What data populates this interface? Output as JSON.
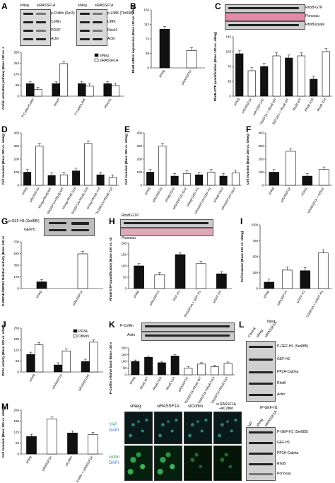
{
  "panels": {
    "A": {
      "label": "A",
      "blot_header_left": [
        "siNeg",
        "siRASSF1A"
      ],
      "blot_header_right": [
        "siNeg",
        "siRASSF1A"
      ],
      "blot_rows_left": [
        "p-Cofilin (Ser3)",
        "Cofilin",
        "PDXP",
        "Actin"
      ],
      "blot_rows_right": [
        "p-LIMK (Thr508)",
        "LIMK",
        "Rock1",
        "Actin"
      ],
      "legend": [
        "siNeg",
        "siRASSF1A"
      ],
      "ylabel": "Cofilin activation pathway (Base 100 vs. siNeg)",
      "categories": [
        "P-Cofilin/ Cofilin",
        "PDXP",
        "P-LIMK/ LIMK",
        "ROCK1"
      ],
      "marks": [
        "**",
        "*",
        "*",
        "*"
      ]
    },
    "B": {
      "label": "B",
      "ylabel": "RhoB mRNA expression (Base 100 vs. siNeg)",
      "categories": [
        "siNeg",
        "siRASSF1A"
      ],
      "mark": "***"
    },
    "C": {
      "label": "C",
      "rows": [
        "RhoB-GTP",
        "Ponceau",
        "RhoB-lysate"
      ],
      "ylabel": "RhoB-GTP quantification (Base 100 vs. siNeg)",
      "categories": [
        "siNeg",
        "siRASSF1A",
        "siRASSF1AC",
        "siRASSF1A + RhoB WT",
        "siRASSF1AC + RhoB WT",
        "RhoB WT",
        "RhoB N19",
        "RhoB V14"
      ]
    },
    "D": {
      "label": "D",
      "ylabel": "Cell invasion (Base 100 vs. siNeg)",
      "categories": [
        "siNeg",
        "siRASSF1A",
        "siNeg+ RhoB WT",
        "siRASSF1A+ RhoB WT",
        "siNeg+ RhoB N19",
        "siRASSF1A+ RhoB N19",
        "siNeg+ RhoB V14",
        "siRASSF1A+ RhoB V14"
      ]
    },
    "E": {
      "label": "E",
      "ylabel": "Cell invasion (Base 100 vs. siNeg)",
      "categories": [
        "siNeg",
        "siRASSF1A",
        "siNeg+ Ect2",
        "siRASSF1A+ Ect2",
        "siNeg+ GEF-H1",
        "siRASSF1A+ GEF-H1",
        "siNeg+ Vav2",
        "siRASSF1A+ Vav2"
      ]
    },
    "F": {
      "label": "F",
      "ylabel": "Cell invasion (Base 100 vs. siNeg)",
      "categories": [
        "siNeg",
        "siRASSF1A",
        "mDia1",
        "siRASSF1A + mDia1"
      ]
    },
    "G": {
      "label": "G",
      "rows": [
        "p-GEF-H1 (Ser885)",
        "GEFH1"
      ],
      "ylabel": "P-GEFH1/GEFH1 Relative activity (Base 100 vs. siNeg)",
      "categories": [
        "siNeg",
        "siRASSF1A"
      ],
      "mark": "*"
    },
    "H": {
      "label": "H",
      "rows": [
        "RhoB-GTP",
        "Ponceau"
      ],
      "ylabel": "RhoB-GTP quantification (Base 100 vs. siNeg)",
      "categories": [
        "siNeg",
        "siRASSF1A",
        "GEF-H1",
        "siRASSF1A + GEF-H1",
        "siGEF-H1"
      ]
    },
    "I": {
      "label": "I",
      "ylabel": "Cell invasion (Base 100 vs. siNeg)",
      "categories": [
        "siNeg",
        "siRASSF1A",
        "siGEF-H1",
        "siRASSF1A + siGEF-H1"
      ]
    },
    "J": {
      "label": "J",
      "legend": [
        "PP2A",
        "Others"
      ],
      "ylabel": "PP2A activity (Base 100 vs. siNeg)",
      "categories": [
        "siNeg",
        "siRASSF1A",
        "siRASSF1AC"
      ]
    },
    "K": {
      "label": "K",
      "rows": [
        "P-Cofilin",
        "Actin"
      ],
      "ylabel": "P-Cofilin relative band (Base 100 vs. siNeg)",
      "categories": [
        "siNeg",
        "RhoB WT",
        "RhoB N19",
        "RhoB V14",
        "siRASSF1A",
        "siRASSF1A+ RhoB WT",
        "siRASSF1A+ RhoB N19",
        "siRASSF1A+ RhoB V14"
      ]
    },
    "L": {
      "label": "L",
      "input_title": "Input",
      "ip_title": "IP-GEF-H1",
      "lanes_input": [
        "Control",
        "siNeg",
        "siRASSF1A"
      ],
      "lanes_ip": [
        "IgG",
        "siNeg",
        "siRASSF1A"
      ],
      "rows_input": [
        "P-GEF-H1 (Ser885)",
        "GEF-H1",
        "PP2A-Calpha",
        "RhoB",
        "Actin"
      ],
      "rows_ip": [
        "P-GEF-H1 (Ser885)",
        "GEF-H1",
        "PP2A-Calpha",
        "RhoB",
        "Ponceau"
      ]
    },
    "M": {
      "label": "M",
      "ylabel": "Cell invasion (Base 100 vs. siNeg)",
      "categories": [
        "siNeg",
        "siRASSF1A",
        "siCofilin",
        "siCofilin + siRASSF1A"
      ],
      "micro_cols": [
        "siNeg",
        "siRASSF1A",
        "siCofilin",
        "si RASSF1A +siCofilin"
      ],
      "stain_top": [
        "YAP",
        "DAPI"
      ],
      "stain_bottom": [
        "cofilin",
        "DAPI"
      ]
    }
  },
  "chart_data": [
    {
      "panel": "A",
      "type": "bar",
      "categories": [
        "P-Cofilin/Cofilin",
        "PDXP",
        "P-LIMK/LIMK",
        "ROCK1"
      ],
      "series": [
        {
          "name": "siNeg",
          "values": [
            100,
            100,
            100,
            100
          ]
        },
        {
          "name": "siRASSF1A",
          "values": [
            55,
            260,
            80,
            85
          ]
        }
      ],
      "ylim": [
        0,
        350
      ]
    },
    {
      "panel": "B",
      "type": "bar",
      "categories": [
        "siNeg",
        "siRASSF1A"
      ],
      "values": [
        100,
        45
      ],
      "ylim": [
        0,
        150
      ]
    },
    {
      "panel": "C",
      "type": "bar",
      "categories": [
        "siNeg",
        "siRASSF1A",
        "siRASSF1AC",
        "siRASSF1A + RhoB WT",
        "siRASSF1AC + RhoB WT",
        "RhoB WT",
        "RhoB N19",
        "RhoB V14"
      ],
      "values": [
        100,
        60,
        70,
        95,
        90,
        95,
        40,
        105
      ],
      "ylim": [
        0,
        140
      ]
    },
    {
      "panel": "D",
      "type": "bar",
      "categories": [
        "siNeg",
        "siRASSF1A",
        "siNeg+RhoB WT",
        "siRASSF1A+RhoB WT",
        "siNeg+RhoB N19",
        "siRASSF1A+RhoB N19",
        "siNeg+RhoB V14",
        "siRASSF1A+RhoB V14"
      ],
      "values": [
        100,
        300,
        75,
        80,
        110,
        320,
        80,
        60
      ],
      "ylim": [
        0,
        400
      ]
    },
    {
      "panel": "E",
      "type": "bar",
      "categories": [
        "siNeg",
        "siRASSF1A",
        "siNeg+Ect2",
        "siRASSF1A+Ect2",
        "siNeg+GEF-H1",
        "siRASSF1A+GEF-H1",
        "siNeg+Vav2",
        "siRASSF1A+Vav2"
      ],
      "values": [
        100,
        300,
        70,
        90,
        80,
        100,
        70,
        95
      ],
      "ylim": [
        0,
        400
      ]
    },
    {
      "panel": "F",
      "type": "bar",
      "categories": [
        "siNeg",
        "siRASSF1A",
        "mDia1",
        "siRASSF1A + mDia1"
      ],
      "values": [
        100,
        260,
        70,
        120
      ],
      "ylim": [
        0,
        400
      ]
    },
    {
      "panel": "G",
      "type": "bar",
      "categories": [
        "siNeg",
        "siRASSF1A"
      ],
      "values": [
        100,
        520
      ],
      "ylim": [
        0,
        700
      ]
    },
    {
      "panel": "H",
      "type": "bar",
      "categories": [
        "siNeg",
        "siRASSF1A",
        "GEF-H1",
        "siRASSF1A + GEF-H1",
        "siGEF-H1"
      ],
      "values": [
        100,
        60,
        150,
        110,
        65
      ],
      "ylim": [
        0,
        200
      ]
    },
    {
      "panel": "I",
      "type": "bar",
      "categories": [
        "siNeg",
        "siRASSF1A",
        "siGEF-H1",
        "siRASSF1A + siGEF-H1"
      ],
      "values": [
        100,
        290,
        280,
        560
      ],
      "ylim": [
        0,
        1000
      ]
    },
    {
      "panel": "J",
      "type": "bar",
      "categories": [
        "siNeg",
        "siRASSF1A",
        "siRASSF1AC"
      ],
      "series": [
        {
          "name": "PP2A",
          "values": [
            100,
            40,
            60
          ]
        },
        {
          "name": "Others",
          "values": [
            155,
            120,
            170
          ]
        }
      ],
      "ylim": [
        0,
        250
      ]
    },
    {
      "panel": "K",
      "type": "bar",
      "categories": [
        "siNeg",
        "RhoB WT",
        "RhoB N19",
        "RhoB V14",
        "siRASSF1A",
        "siRASSF1A+RhoB WT",
        "siRASSF1A+RhoB N19",
        "siRASSF1A+RhoB V14"
      ],
      "values": [
        100,
        130,
        90,
        140,
        50,
        80,
        60,
        85
      ],
      "ylim": [
        0,
        200
      ]
    },
    {
      "panel": "M",
      "type": "bar",
      "categories": [
        "siNeg",
        "siRASSF1A",
        "siCofilin",
        "siCofilin + siRASSF1A"
      ],
      "values": [
        100,
        200,
        120,
        110
      ],
      "ylim": [
        0,
        250
      ]
    }
  ]
}
